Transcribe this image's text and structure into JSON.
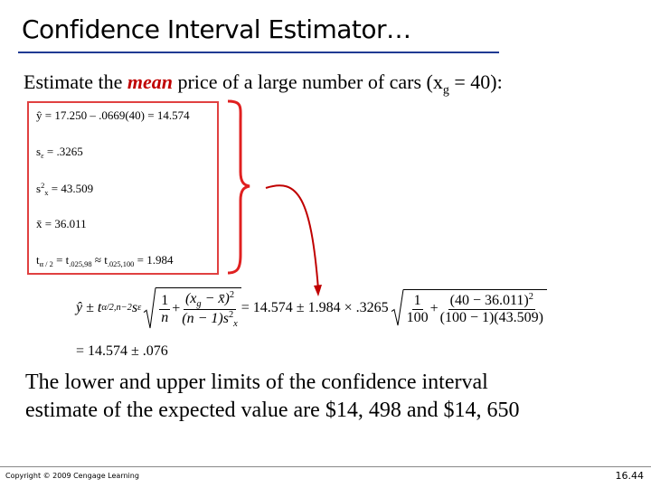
{
  "title": "Confidence Interval Estimator…",
  "intro": {
    "before": "Estimate the ",
    "emphasis": "mean",
    "middle": " price of a large number of cars (x",
    "subscript": "g",
    "after": " = 40):"
  },
  "given": [
    [
      {
        "t": "ŷ = 17.250 – .0669(40) = 14.574"
      }
    ],
    [
      {
        "t": "s"
      },
      {
        "t": "ε",
        "pos": "sub"
      },
      {
        "t": " = .3265"
      }
    ],
    [
      {
        "t": "s"
      },
      {
        "t": "2",
        "pos": "sup"
      },
      {
        "t": "x",
        "pos": "sub"
      },
      {
        "t": " = 43.509"
      }
    ],
    [
      {
        "t": "x̄ = 36.011"
      }
    ],
    [
      {
        "t": "t"
      },
      {
        "t": "α / 2",
        "pos": "sub"
      },
      {
        "t": " = t"
      },
      {
        "t": ".025,98",
        "pos": "sub"
      },
      {
        "t": " ≈ t"
      },
      {
        "t": ".025,100",
        "pos": "sub"
      },
      {
        "t": " = 1.984"
      }
    ]
  ],
  "formula": [
    {
      "t": "ŷ ± t",
      "i": true
    },
    {
      "t": "α/2,n−2",
      "pos": "sub",
      "i": true
    },
    {
      "t": "s",
      "i": true
    },
    {
      "t": "ε",
      "pos": "sub",
      "i": true
    },
    {
      "sqrt": [
        {
          "num": [
            {
              "t": "1"
            }
          ],
          "den": [
            {
              "t": "n",
              "i": true
            }
          ]
        },
        {
          "t": " + "
        },
        {
          "num": [
            {
              "t": "(x",
              "i": true
            },
            {
              "t": "g",
              "pos": "sub",
              "i": true
            },
            {
              "t": " − x̄)",
              "i": true
            },
            {
              "t": "2",
              "pos": "sup"
            }
          ],
          "den": [
            {
              "t": "(n − 1)s",
              "i": true
            },
            {
              "t": "2",
              "pos": "sup"
            },
            {
              "t": "x",
              "pos": "sub",
              "i": true
            }
          ]
        }
      ]
    },
    {
      "t": " = 14.574 ± 1.984 × .3265"
    },
    {
      "sqrt": [
        {
          "num": [
            {
              "t": "1"
            }
          ],
          "den": [
            {
              "t": "100"
            }
          ]
        },
        {
          "t": " + "
        },
        {
          "num": [
            {
              "t": "(40 − 36.011)"
            },
            {
              "t": "2",
              "pos": "sup"
            }
          ],
          "den": [
            {
              "t": "(100 − 1)(43.509)"
            }
          ]
        }
      ]
    }
  ],
  "result": "= 14.574 ± .076",
  "conclusion": [
    "The lower and upper limits of the confidence interval",
    "estimate of the expected value are $14, 498 and $14, 650"
  ],
  "footer": {
    "copyright": "Copyright © 2009 Cengage Learning",
    "page": "16.44"
  }
}
